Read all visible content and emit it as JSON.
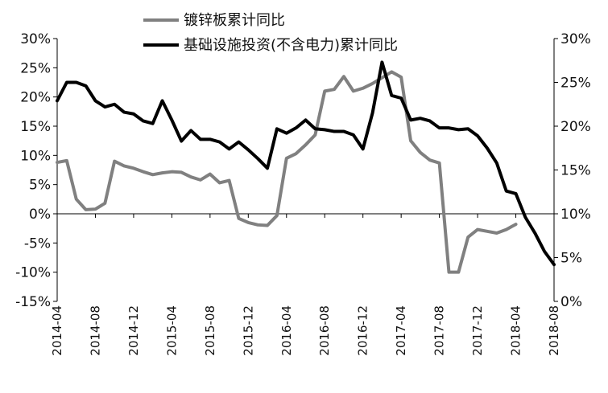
{
  "chart_data": {
    "type": "line",
    "title": "",
    "xlabel": "",
    "x_ticks": [
      "2014-04",
      "2014-08",
      "2014-12",
      "2015-04",
      "2015-08",
      "2015-12",
      "2016-04",
      "2016-08",
      "2016-12",
      "2017-04",
      "2017-08",
      "2017-12",
      "2018-04",
      "2018-08"
    ],
    "x_range": [
      "2014-04",
      "2018-08"
    ],
    "y_left": {
      "ticks": [
        "30%",
        "25%",
        "20%",
        "15%",
        "10%",
        "5%",
        "0%",
        "-5%",
        "-10%",
        "-15%"
      ],
      "ylim": [
        -15,
        30
      ]
    },
    "y_right": {
      "ticks": [
        "30%",
        "25%",
        "20%",
        "15%",
        "10%",
        "5%",
        "0%"
      ],
      "ylim": [
        0,
        30
      ]
    },
    "legend": {
      "placement": "top-center"
    },
    "zero_line": true,
    "grid": false,
    "series": [
      {
        "name": "镀锌板累计同比",
        "axis": "left",
        "color": "#808080",
        "points": [
          [
            "2014-04",
            8.8
          ],
          [
            "2014-05",
            9.1
          ],
          [
            "2014-06",
            2.5
          ],
          [
            "2014-07",
            0.7
          ],
          [
            "2014-08",
            0.8
          ],
          [
            "2014-09",
            1.8
          ],
          [
            "2014-10",
            9.0
          ],
          [
            "2014-11",
            8.2
          ],
          [
            "2014-12",
            7.8
          ],
          [
            "2015-01",
            7.2
          ],
          [
            "2015-02",
            6.7
          ],
          [
            "2015-03",
            7.0
          ],
          [
            "2015-04",
            7.2
          ],
          [
            "2015-05",
            7.1
          ],
          [
            "2015-06",
            6.3
          ],
          [
            "2015-07",
            5.8
          ],
          [
            "2015-08",
            6.8
          ],
          [
            "2015-09",
            5.3
          ],
          [
            "2015-10",
            5.7
          ],
          [
            "2015-11",
            -0.8
          ],
          [
            "2015-12",
            -1.5
          ],
          [
            "2016-01",
            -1.9
          ],
          [
            "2016-02",
            -2.0
          ],
          [
            "2016-03",
            -0.3
          ],
          [
            "2016-04",
            9.5
          ],
          [
            "2016-05",
            10.3
          ],
          [
            "2016-06",
            11.8
          ],
          [
            "2016-07",
            13.5
          ],
          [
            "2016-08",
            21.0
          ],
          [
            "2016-09",
            21.3
          ],
          [
            "2016-10",
            23.5
          ],
          [
            "2016-11",
            21.0
          ],
          [
            "2016-12",
            21.5
          ],
          [
            "2017-01",
            22.3
          ],
          [
            "2017-02",
            23.3
          ],
          [
            "2017-03",
            24.3
          ],
          [
            "2017-04",
            23.4
          ],
          [
            "2017-05",
            12.5
          ],
          [
            "2017-06",
            10.5
          ],
          [
            "2017-07",
            9.2
          ],
          [
            "2017-08",
            8.7
          ],
          [
            "2017-09",
            -10.0
          ],
          [
            "2017-10",
            -10.0
          ],
          [
            "2017-11",
            -4.0
          ],
          [
            "2017-12",
            -2.7
          ],
          [
            "2018-01",
            -3.0
          ],
          [
            "2018-02",
            -3.3
          ],
          [
            "2018-03",
            -2.7
          ],
          [
            "2018-04",
            -1.8
          ]
        ]
      },
      {
        "name": "基础设施投资(不含电力)累计同比",
        "axis": "right",
        "color": "#000000",
        "points": [
          [
            "2014-04",
            22.9
          ],
          [
            "2014-05",
            25.0
          ],
          [
            "2014-06",
            25.0
          ],
          [
            "2014-07",
            24.6
          ],
          [
            "2014-08",
            22.9
          ],
          [
            "2014-09",
            22.2
          ],
          [
            "2014-10",
            22.5
          ],
          [
            "2014-11",
            21.6
          ],
          [
            "2014-12",
            21.4
          ],
          [
            "2015-01",
            20.6
          ],
          [
            "2015-02",
            20.3
          ],
          [
            "2015-03",
            22.9
          ],
          [
            "2015-04",
            20.7
          ],
          [
            "2015-05",
            18.3
          ],
          [
            "2015-06",
            19.5
          ],
          [
            "2015-07",
            18.5
          ],
          [
            "2015-08",
            18.5
          ],
          [
            "2015-09",
            18.2
          ],
          [
            "2015-10",
            17.4
          ],
          [
            "2015-11",
            18.2
          ],
          [
            "2015-12",
            17.3
          ],
          [
            "2016-01",
            16.3
          ],
          [
            "2016-02",
            15.2
          ],
          [
            "2016-03",
            19.7
          ],
          [
            "2016-04",
            19.2
          ],
          [
            "2016-05",
            19.8
          ],
          [
            "2016-06",
            20.7
          ],
          [
            "2016-07",
            19.7
          ],
          [
            "2016-08",
            19.6
          ],
          [
            "2016-09",
            19.4
          ],
          [
            "2016-10",
            19.4
          ],
          [
            "2016-11",
            19.0
          ],
          [
            "2016-12",
            17.4
          ],
          [
            "2017-01",
            21.5
          ],
          [
            "2017-02",
            27.3
          ],
          [
            "2017-03",
            23.5
          ],
          [
            "2017-04",
            23.2
          ],
          [
            "2017-05",
            20.7
          ],
          [
            "2017-06",
            20.9
          ],
          [
            "2017-07",
            20.6
          ],
          [
            "2017-08",
            19.8
          ],
          [
            "2017-09",
            19.8
          ],
          [
            "2017-10",
            19.6
          ],
          [
            "2017-11",
            19.7
          ],
          [
            "2017-12",
            18.9
          ],
          [
            "2018-01",
            17.5
          ],
          [
            "2018-02",
            15.8
          ],
          [
            "2018-03",
            12.6
          ],
          [
            "2018-04",
            12.3
          ],
          [
            "2018-05",
            9.6
          ],
          [
            "2018-06",
            7.8
          ],
          [
            "2018-07",
            5.7
          ],
          [
            "2018-08",
            4.2
          ]
        ]
      }
    ]
  }
}
